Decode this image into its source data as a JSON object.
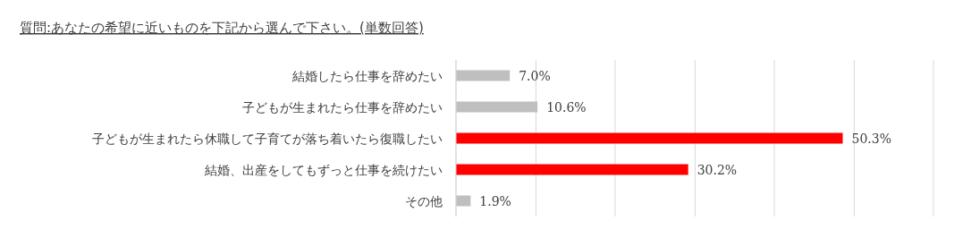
{
  "chart_data": {
    "type": "bar",
    "orientation": "horizontal",
    "title": "質問:あなたの希望に近いものを下記から選んで下さい。(単数回答)",
    "categories": [
      "結婚したら仕事を辞めたい",
      "子どもが生まれたら仕事を辞めたい",
      "子どもが生まれたら休職して子育てが落ち着いたら復職したい",
      "結婚、出産をしてもずっと仕事を続けたい",
      "その他"
    ],
    "values": [
      7.0,
      10.6,
      50.3,
      30.2,
      1.9
    ],
    "value_labels": [
      "7.0%",
      "10.6%",
      "50.3%",
      "30.2%",
      "1.9%"
    ],
    "colors": [
      "#bfbfbf",
      "#bfbfbf",
      "#ff0000",
      "#ff0000",
      "#bfbfbf"
    ],
    "xlim": [
      0,
      62.1
    ],
    "xticks": [
      {
        "value": 0,
        "label": null
      },
      {
        "value": 10.4,
        "label": null
      },
      {
        "value": 20.7,
        "label": null
      },
      {
        "value": 31.1,
        "label": null
      },
      {
        "value": 41.4,
        "label": null
      },
      {
        "value": 51.8,
        "label": null
      },
      {
        "value": 62.1,
        "label": null
      }
    ],
    "grid": "x",
    "tick_labels": false
  }
}
